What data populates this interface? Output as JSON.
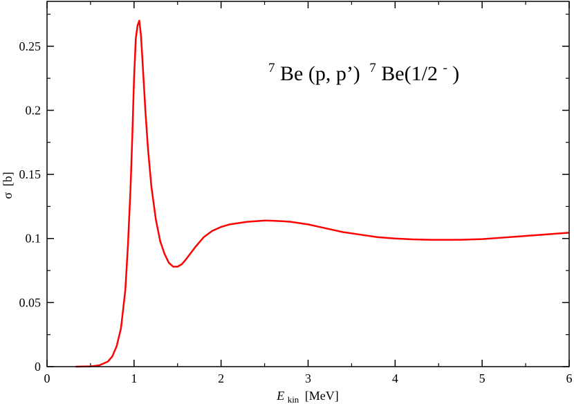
{
  "chart_data": {
    "type": "line",
    "title": "",
    "annotation": {
      "mass1": "7",
      "text1": "Be (p, p’)",
      "mass2": "7",
      "text2": "Be(1/2",
      "sup": "-",
      "close": ")"
    },
    "xlabel": {
      "symbol": "E",
      "sub": "kin",
      "unit": "[MeV]"
    },
    "ylabel": {
      "symbol": "σ",
      "unit": "[b]"
    },
    "xlim": [
      0,
      6
    ],
    "ylim": [
      0,
      0.285
    ],
    "xticks": [
      0,
      1,
      2,
      3,
      4,
      5,
      6
    ],
    "xtick_labels": [
      "0",
      "1",
      "2",
      "3",
      "4",
      "5",
      "6"
    ],
    "yticks": [
      0,
      0.05,
      0.1,
      0.15,
      0.2,
      0.25
    ],
    "ytick_labels": [
      "0",
      "0.05",
      "0.1",
      "0.15",
      "0.2",
      "0.25"
    ],
    "grid": false,
    "series": [
      {
        "color": "#ff0000",
        "x": [
          0.33,
          0.5,
          0.6,
          0.7,
          0.75,
          0.8,
          0.85,
          0.9,
          0.93,
          0.96,
          0.98,
          1.0,
          1.02,
          1.04,
          1.06,
          1.08,
          1.1,
          1.13,
          1.16,
          1.2,
          1.25,
          1.3,
          1.35,
          1.4,
          1.45,
          1.5,
          1.55,
          1.6,
          1.7,
          1.8,
          1.9,
          2.0,
          2.1,
          2.2,
          2.3,
          2.4,
          2.5,
          2.6,
          2.7,
          2.8,
          3.0,
          3.2,
          3.4,
          3.6,
          3.8,
          4.0,
          4.2,
          4.4,
          4.6,
          4.75,
          5.0,
          5.2,
          5.4,
          5.6,
          5.8,
          6.0
        ],
        "y": [
          0.0,
          0.0002,
          0.001,
          0.004,
          0.008,
          0.016,
          0.03,
          0.06,
          0.095,
          0.14,
          0.18,
          0.225,
          0.256,
          0.266,
          0.27,
          0.258,
          0.235,
          0.2,
          0.17,
          0.14,
          0.115,
          0.098,
          0.088,
          0.081,
          0.078,
          0.078,
          0.08,
          0.084,
          0.093,
          0.101,
          0.106,
          0.109,
          0.111,
          0.112,
          0.113,
          0.1135,
          0.114,
          0.1138,
          0.1135,
          0.113,
          0.111,
          0.108,
          0.105,
          0.103,
          0.101,
          0.1,
          0.0993,
          0.099,
          0.099,
          0.099,
          0.0995,
          0.1005,
          0.1015,
          0.1025,
          0.1035,
          0.1045
        ]
      }
    ]
  }
}
